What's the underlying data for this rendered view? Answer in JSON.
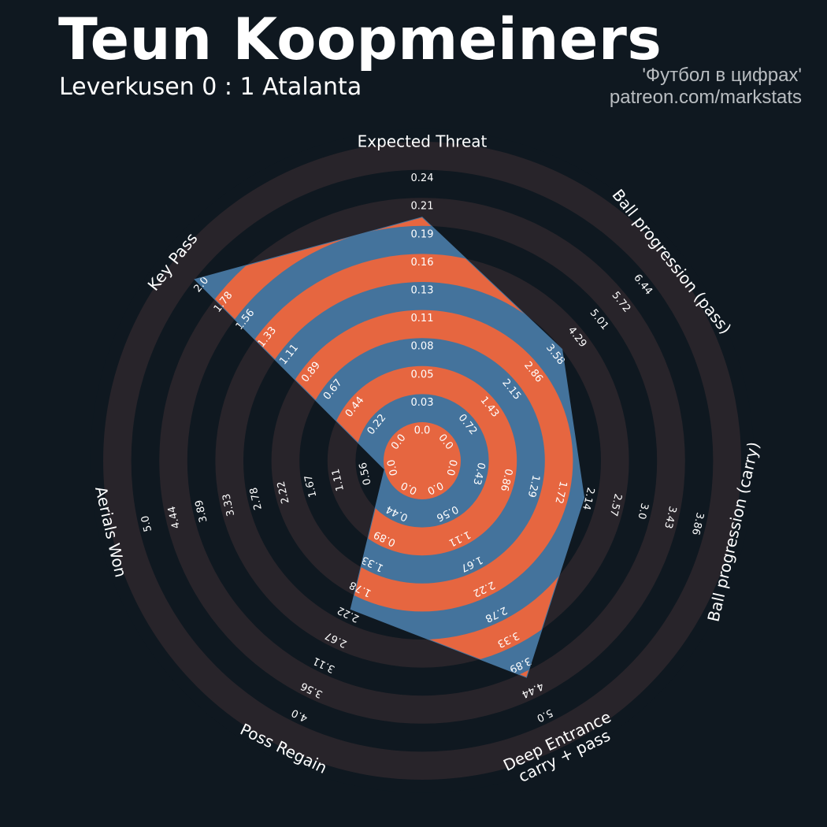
{
  "header": {
    "player": "Teun Koopmeiners",
    "match": "Leverkusen 0 : 1 Atalanta",
    "credit_line1": "'Футбол в цифрах'",
    "credit_line2": "patreon.com/markstats"
  },
  "colors": {
    "background": "#0f1820",
    "ring_dark": "#28242a",
    "polygon_blue": "#44739c",
    "polygon_orange": "#e66640",
    "text": "#ffffff"
  },
  "chart_data": {
    "type": "radar",
    "title": "Teun Koopmeiners",
    "subtitle": "Leverkusen 0 : 1 Atalanta",
    "axes": [
      {
        "label": "Expected Threat",
        "ticks": [
          "0.0",
          "0.03",
          "0.05",
          "0.08",
          "0.11",
          "0.13",
          "0.16",
          "0.19",
          "0.21",
          "0.24"
        ],
        "min": 0,
        "max": 0.24,
        "value": 0.195
      },
      {
        "label": "Ball progression (pass)",
        "ticks": [
          "0.0",
          "0.72",
          "1.43",
          "2.15",
          "2.86",
          "3.58",
          "4.29",
          "5.01",
          "5.72",
          "6.44"
        ],
        "min": 0,
        "max": 6.44,
        "value": 3.58
      },
      {
        "label": "Ball progression (carry)",
        "ticks": [
          "0.0",
          "0.43",
          "0.86",
          "1.29",
          "1.72",
          "2.14",
          "2.57",
          "3.0",
          "3.43",
          "3.86"
        ],
        "min": 0,
        "max": 3.86,
        "value": 1.95
      },
      {
        "label": "Deep Entrance\ncarry + pass",
        "ticks": [
          "0.0",
          "0.56",
          "1.11",
          "1.67",
          "2.22",
          "2.78",
          "3.33",
          "3.89",
          "4.44",
          "5.0"
        ],
        "min": 0,
        "max": 5.0,
        "value": 4.0
      },
      {
        "label": "Poss Regain",
        "ticks": [
          "0.0",
          "0.44",
          "0.89",
          "1.33",
          "1.78",
          "2.22",
          "2.67",
          "3.11",
          "3.56",
          "4.0"
        ],
        "min": 0,
        "max": 4.0,
        "value": 2.0
      },
      {
        "label": "Aerials Won",
        "ticks": [
          "0.0",
          "0.56",
          "1.11",
          "1.67",
          "2.22",
          "2.78",
          "3.33",
          "3.89",
          "4.44",
          "5.0"
        ],
        "min": 0,
        "max": 5.0,
        "value": 0.0
      },
      {
        "label": "Key Pass",
        "ticks": [
          "0.0",
          "0.22",
          "0.44",
          "0.67",
          "0.89",
          "1.11",
          "1.33",
          "1.56",
          "1.78",
          "2.0"
        ],
        "min": 0,
        "max": 2.0,
        "value": 2.0
      }
    ],
    "grid": true,
    "legend": "none"
  }
}
